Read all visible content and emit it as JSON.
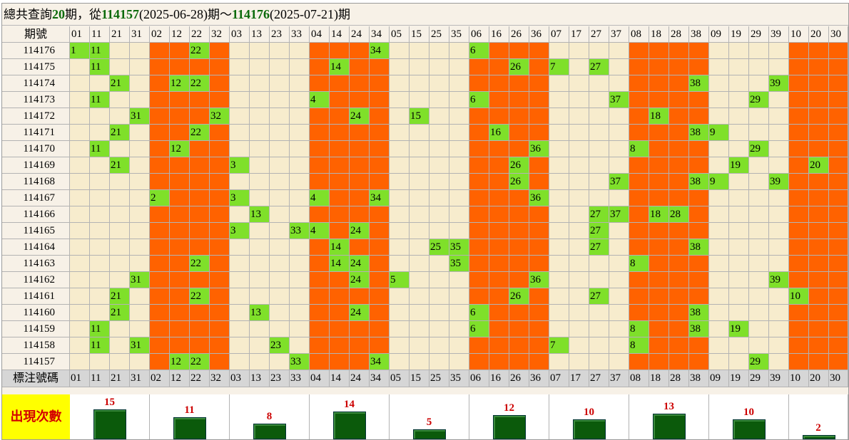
{
  "header": {
    "p1": "總共查詢",
    "count": "20",
    "p2": "期，從",
    "start_id": "114157",
    "start_date": "(2025-06-28)",
    "p3": "期～",
    "end_id": "114176",
    "end_date": "(2025-07-21)",
    "p4": "期"
  },
  "table": {
    "header_label": "期號",
    "footer_label": "標注號碼",
    "count_label": "出現次數",
    "groups": [
      {
        "numbers": [
          "01",
          "11",
          "21",
          "31"
        ],
        "color": "beige",
        "count": 15
      },
      {
        "numbers": [
          "02",
          "12",
          "22",
          "32"
        ],
        "color": "orange",
        "count": 11
      },
      {
        "numbers": [
          "03",
          "13",
          "23",
          "33"
        ],
        "color": "beige",
        "count": 8
      },
      {
        "numbers": [
          "04",
          "14",
          "24",
          "34"
        ],
        "color": "orange",
        "count": 14
      },
      {
        "numbers": [
          "05",
          "15",
          "25",
          "35"
        ],
        "color": "beige",
        "count": 5
      },
      {
        "numbers": [
          "06",
          "16",
          "26",
          "36"
        ],
        "color": "orange",
        "count": 12
      },
      {
        "numbers": [
          "07",
          "17",
          "27",
          "37"
        ],
        "color": "beige",
        "count": 10
      },
      {
        "numbers": [
          "08",
          "18",
          "28",
          "38"
        ],
        "color": "orange",
        "count": 13
      },
      {
        "numbers": [
          "09",
          "19",
          "29",
          "39"
        ],
        "color": "beige",
        "count": 10
      },
      {
        "numbers": [
          "10",
          "20",
          "30"
        ],
        "color": "orange",
        "count": 2
      }
    ],
    "rows": [
      {
        "id": "114176",
        "hits": [
          [
            0,
            "1"
          ],
          [
            1,
            "11"
          ],
          [
            6,
            "22"
          ],
          [
            15,
            "34"
          ],
          [
            20,
            "6"
          ]
        ]
      },
      {
        "id": "114175",
        "hits": [
          [
            1,
            "11"
          ],
          [
            13,
            "14"
          ],
          [
            22,
            "26"
          ],
          [
            24,
            "7"
          ],
          [
            26,
            "27"
          ]
        ]
      },
      {
        "id": "114174",
        "hits": [
          [
            2,
            "21"
          ],
          [
            5,
            "12"
          ],
          [
            6,
            "22"
          ],
          [
            31,
            "38"
          ],
          [
            35,
            "39"
          ]
        ]
      },
      {
        "id": "114173",
        "hits": [
          [
            1,
            "11"
          ],
          [
            12,
            "4"
          ],
          [
            20,
            "6"
          ],
          [
            27,
            "37"
          ],
          [
            34,
            "29"
          ]
        ]
      },
      {
        "id": "114172",
        "hits": [
          [
            3,
            "31"
          ],
          [
            7,
            "32"
          ],
          [
            14,
            "24"
          ],
          [
            17,
            "15"
          ],
          [
            29,
            "18"
          ]
        ]
      },
      {
        "id": "114171",
        "hits": [
          [
            2,
            "21"
          ],
          [
            6,
            "22"
          ],
          [
            21,
            "16"
          ],
          [
            31,
            "38"
          ],
          [
            32,
            "9"
          ]
        ]
      },
      {
        "id": "114170",
        "hits": [
          [
            1,
            "11"
          ],
          [
            5,
            "12"
          ],
          [
            23,
            "36"
          ],
          [
            28,
            "8"
          ],
          [
            34,
            "29"
          ]
        ]
      },
      {
        "id": "114169",
        "hits": [
          [
            2,
            "21"
          ],
          [
            8,
            "3"
          ],
          [
            22,
            "26"
          ],
          [
            33,
            "19"
          ],
          [
            37,
            "20"
          ]
        ]
      },
      {
        "id": "114168",
        "hits": [
          [
            22,
            "26"
          ],
          [
            27,
            "37"
          ],
          [
            31,
            "38"
          ],
          [
            32,
            "9"
          ],
          [
            35,
            "39"
          ]
        ]
      },
      {
        "id": "114167",
        "hits": [
          [
            4,
            "2"
          ],
          [
            8,
            "3"
          ],
          [
            12,
            "4"
          ],
          [
            15,
            "34"
          ],
          [
            23,
            "36"
          ]
        ]
      },
      {
        "id": "114166",
        "hits": [
          [
            9,
            "13"
          ],
          [
            26,
            "27"
          ],
          [
            27,
            "37"
          ],
          [
            29,
            "18"
          ],
          [
            30,
            "28"
          ]
        ]
      },
      {
        "id": "114165",
        "hits": [
          [
            8,
            "3"
          ],
          [
            11,
            "33"
          ],
          [
            12,
            "4"
          ],
          [
            14,
            "24"
          ],
          [
            26,
            "27"
          ]
        ]
      },
      {
        "id": "114164",
        "hits": [
          [
            13,
            "14"
          ],
          [
            18,
            "25"
          ],
          [
            19,
            "35"
          ],
          [
            26,
            "27"
          ],
          [
            31,
            "38"
          ]
        ]
      },
      {
        "id": "114163",
        "hits": [
          [
            6,
            "22"
          ],
          [
            13,
            "14"
          ],
          [
            14,
            "24"
          ],
          [
            19,
            "35"
          ],
          [
            28,
            "8"
          ]
        ]
      },
      {
        "id": "114162",
        "hits": [
          [
            3,
            "31"
          ],
          [
            14,
            "24"
          ],
          [
            16,
            "5"
          ],
          [
            23,
            "36"
          ],
          [
            35,
            "39"
          ]
        ]
      },
      {
        "id": "114161",
        "hits": [
          [
            2,
            "21"
          ],
          [
            6,
            "22"
          ],
          [
            22,
            "26"
          ],
          [
            26,
            "27"
          ],
          [
            36,
            "10"
          ]
        ]
      },
      {
        "id": "114160",
        "hits": [
          [
            2,
            "21"
          ],
          [
            9,
            "13"
          ],
          [
            14,
            "24"
          ],
          [
            20,
            "6"
          ],
          [
            31,
            "38"
          ]
        ]
      },
      {
        "id": "114159",
        "hits": [
          [
            1,
            "11"
          ],
          [
            20,
            "6"
          ],
          [
            28,
            "8"
          ],
          [
            31,
            "38"
          ],
          [
            33,
            "19"
          ]
        ]
      },
      {
        "id": "114158",
        "hits": [
          [
            1,
            "11"
          ],
          [
            3,
            "31"
          ],
          [
            10,
            "23"
          ],
          [
            24,
            "7"
          ],
          [
            28,
            "8"
          ]
        ]
      },
      {
        "id": "114157",
        "hits": [
          [
            5,
            "12"
          ],
          [
            6,
            "22"
          ],
          [
            11,
            "33"
          ],
          [
            15,
            "34"
          ],
          [
            34,
            "29"
          ]
        ]
      }
    ]
  },
  "colors": {
    "orange": "#ff6200",
    "beige": "#f7eccd",
    "hit": "#7fe02a",
    "bar": "#0b5a0b",
    "count_label_bg": "#ffff00",
    "count_label_fg": "#d40000"
  }
}
